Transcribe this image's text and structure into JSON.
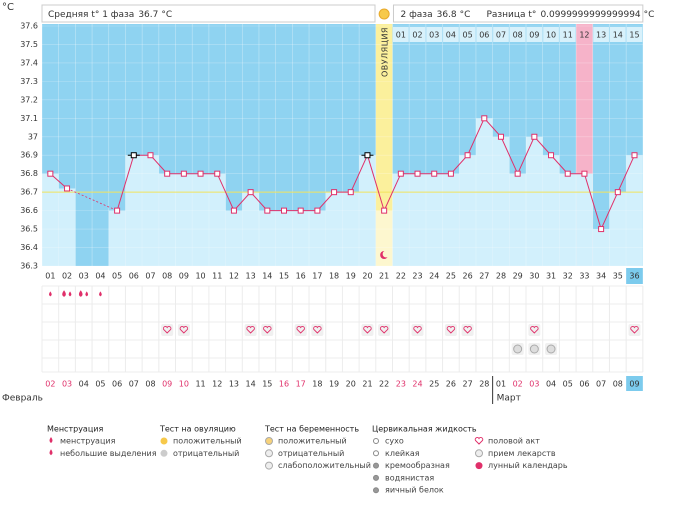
{
  "chart_data": {
    "type": "line",
    "y_unit": "°C",
    "ylim": [
      36.3,
      37.6
    ],
    "yticks": [
      36.3,
      36.4,
      36.5,
      36.6,
      36.7,
      36.8,
      36.9,
      37,
      37.1,
      37.2,
      37.3,
      37.4,
      37.5,
      37.6
    ],
    "grid": true,
    "categories": [
      "01",
      "02",
      "03",
      "04",
      "05",
      "06",
      "07",
      "08",
      "09",
      "10",
      "11",
      "12",
      "13",
      "14",
      "15",
      "16",
      "17",
      "18",
      "19",
      "20",
      "21",
      "22",
      "23",
      "24",
      "25",
      "26",
      "27",
      "28",
      "29",
      "30",
      "31",
      "32",
      "33",
      "34",
      "35",
      "36"
    ],
    "series": [
      {
        "color": "#e0306a",
        "values": [
          36.8,
          36.72,
          null,
          null,
          36.6,
          36.9,
          36.9,
          36.8,
          36.8,
          36.8,
          36.8,
          36.6,
          36.7,
          36.6,
          36.6,
          36.6,
          36.6,
          36.7,
          36.7,
          36.9,
          36.6,
          36.8,
          36.8,
          36.8,
          36.8,
          36.9,
          37.1,
          37.0,
          36.8,
          37.0,
          36.9,
          36.8,
          36.8,
          36.5,
          36.7,
          36.9
        ]
      }
    ],
    "excluded_days": [
      "06",
      "20"
    ],
    "phase1_label": "Средняя t° 1 фаза",
    "phase1_avg": 36.7,
    "avg_line_color": "#f2e35c",
    "phase2_label": "2 фаза",
    "phase2_avg": 36.8,
    "diff_label": "Разница t°",
    "diff": 0.0999999999999994,
    "phase2_days": [
      "01",
      "02",
      "03",
      "04",
      "05",
      "06",
      "07",
      "08",
      "09",
      "10",
      "11",
      "12",
      "13",
      "14",
      "15"
    ],
    "ovulation": {
      "label": "ОВУЛЯЦИЯ",
      "day": "21",
      "color": "#fbf09c"
    },
    "pink_days": [
      "33"
    ],
    "pink_color": "#f6b3c9",
    "moon_day": "21",
    "today": "36",
    "menstruation": [
      {
        "day": "01",
        "count": 1
      },
      {
        "day": "02",
        "count": 2
      },
      {
        "day": "03",
        "count": 2
      },
      {
        "day": "04",
        "count": 1
      }
    ],
    "intercourse_days": [
      "08",
      "09",
      "13",
      "14",
      "16",
      "17",
      "20",
      "21",
      "23",
      "25",
      "26",
      "30",
      "36"
    ],
    "pregnancy_test_days": [
      "29",
      "30",
      "31"
    ],
    "dates": [
      {
        "label": "02",
        "weekend": true
      },
      {
        "label": "03",
        "weekend": true
      },
      {
        "label": "04",
        "weekend": false
      },
      {
        "label": "05",
        "weekend": false
      },
      {
        "label": "06",
        "weekend": false
      },
      {
        "label": "07",
        "weekend": false
      },
      {
        "label": "08",
        "weekend": false
      },
      {
        "label": "09",
        "weekend": true
      },
      {
        "label": "10",
        "weekend": true
      },
      {
        "label": "11",
        "weekend": false
      },
      {
        "label": "12",
        "weekend": false
      },
      {
        "label": "13",
        "weekend": false
      },
      {
        "label": "14",
        "weekend": false
      },
      {
        "label": "15",
        "weekend": false
      },
      {
        "label": "16",
        "weekend": true
      },
      {
        "label": "17",
        "weekend": true
      },
      {
        "label": "18",
        "weekend": false
      },
      {
        "label": "19",
        "weekend": false
      },
      {
        "label": "20",
        "weekend": false
      },
      {
        "label": "21",
        "weekend": false
      },
      {
        "label": "22",
        "weekend": false
      },
      {
        "label": "23",
        "weekend": true
      },
      {
        "label": "24",
        "weekend": true
      },
      {
        "label": "25",
        "weekend": false
      },
      {
        "label": "26",
        "weekend": false
      },
      {
        "label": "27",
        "weekend": false
      },
      {
        "label": "28",
        "weekend": false
      },
      {
        "label": "01",
        "weekend": false
      },
      {
        "label": "02",
        "weekend": true
      },
      {
        "label": "03",
        "weekend": true
      },
      {
        "label": "04",
        "weekend": false
      },
      {
        "label": "05",
        "weekend": false
      },
      {
        "label": "06",
        "weekend": false
      },
      {
        "label": "07",
        "weekend": false
      },
      {
        "label": "08",
        "weekend": false
      },
      {
        "label": "09",
        "weekend": false
      }
    ],
    "months": [
      {
        "label": "Февраль",
        "start_day": "01"
      },
      {
        "label": "Март",
        "start_day": "28"
      }
    ],
    "legend": [
      {
        "title": "Менструация",
        "items": [
          "менструация",
          "небольшие выделения"
        ]
      },
      {
        "title": "Тест на овуляцию",
        "items": [
          "положительный",
          "отрицательный"
        ]
      },
      {
        "title": "Тест на беременность",
        "items": [
          "положительный",
          "отрицательный",
          "слабоположительный"
        ]
      },
      {
        "title": "Цервикальная жидкость",
        "items": [
          "сухо",
          "клейкая",
          "кремообразная",
          "водянистая",
          "яичный белок"
        ]
      },
      {
        "title": null,
        "items": [
          "половой акт",
          "прием лекарств",
          "лунный календарь"
        ]
      }
    ]
  }
}
